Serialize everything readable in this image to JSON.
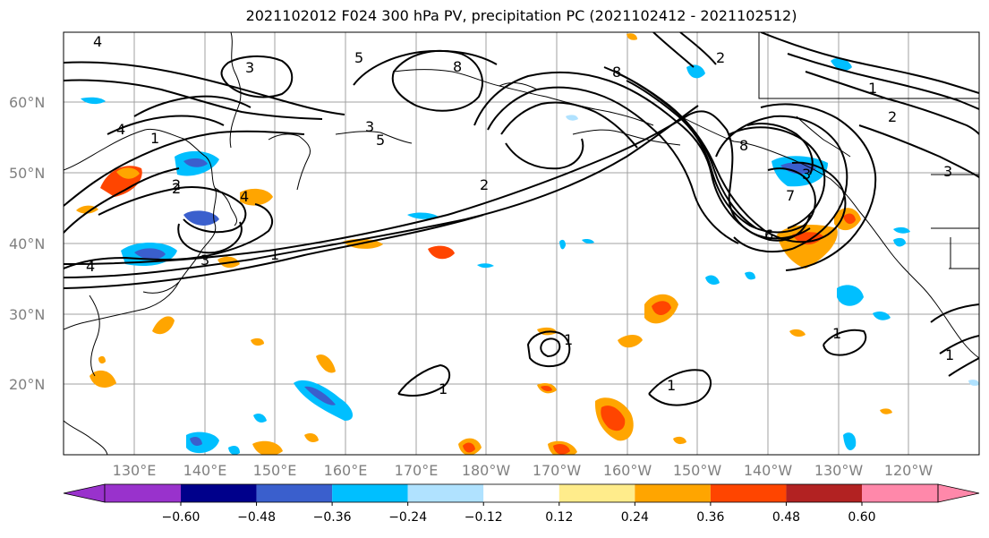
{
  "title": "2021102012 F024 300 hPa PV, precipitation PC (2021102412 - 2021102512)",
  "lat_labels": [
    "60°N",
    "50°N",
    "40°N",
    "30°N",
    "20°N"
  ],
  "lon_labels": [
    "130°E",
    "140°E",
    "150°E",
    "160°E",
    "170°E",
    "180°W",
    "170°W",
    "160°W",
    "150°W",
    "140°W",
    "130°W",
    "120°W"
  ],
  "colorbar": {
    "ticks": [
      "−0.60",
      "−0.48",
      "−0.36",
      "−0.24",
      "−0.12",
      "0.12",
      "0.24",
      "0.36",
      "0.48",
      "0.60"
    ],
    "colors": [
      "#9932cc",
      "#00008b",
      "#3a5fcd",
      "#00bfff",
      "#b0e2ff",
      "#ffffff",
      "#ffec8b",
      "#ffa500",
      "#ff4500",
      "#b22222",
      "#ff88aa"
    ]
  },
  "contour_labels": [
    "4",
    "3",
    "5",
    "8",
    "3",
    "2",
    "2",
    "1",
    "4",
    "3",
    "4",
    "5",
    "8",
    "2",
    "3",
    "4",
    "1",
    "2",
    "1",
    "1",
    "1",
    "1",
    "2",
    "8",
    "6",
    "7",
    "1",
    "1",
    "3"
  ]
}
